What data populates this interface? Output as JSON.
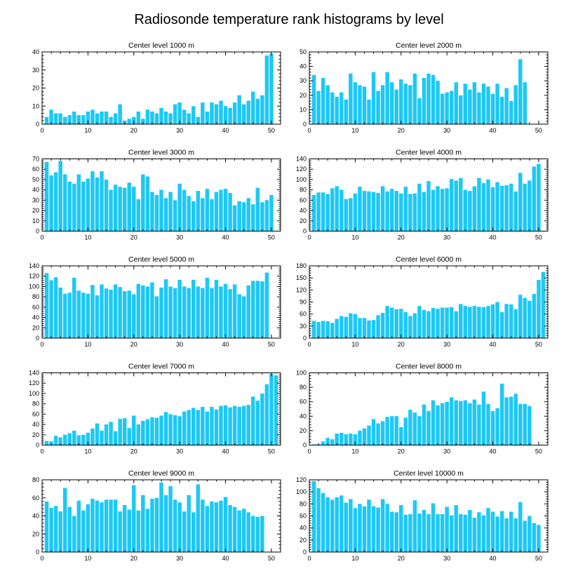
{
  "figure": {
    "title": "Radiosonde temperature rank histograms by level",
    "bar_color": "#1ec8f5"
  },
  "chart_data": [
    {
      "type": "bar",
      "title": "Center level 1000 m",
      "xlim": [
        0,
        52
      ],
      "xticks": [
        0,
        10,
        20,
        30,
        40,
        50
      ],
      "ylim": [
        0,
        40
      ],
      "yticks": [
        0,
        10,
        20,
        30,
        40
      ],
      "values": [
        4,
        8,
        6,
        6,
        4,
        5,
        7,
        5,
        5,
        7,
        8,
        6,
        7,
        7,
        4,
        6,
        11,
        2,
        3,
        4,
        7,
        3,
        8,
        7,
        6,
        9,
        7,
        6,
        11,
        12,
        8,
        6,
        10,
        4,
        12,
        7,
        12,
        11,
        13,
        10,
        9,
        12,
        16,
        11,
        13,
        18,
        14,
        16,
        38,
        39
      ]
    },
    {
      "type": "bar",
      "title": "Center level 2000 m",
      "xlim": [
        0,
        52
      ],
      "xticks": [
        0,
        10,
        20,
        30,
        40,
        50
      ],
      "ylim": [
        0,
        50
      ],
      "yticks": [
        0,
        10,
        20,
        30,
        40,
        50
      ],
      "values": [
        34,
        23,
        32,
        27,
        22,
        19,
        22,
        17,
        35,
        29,
        27,
        26,
        17,
        36,
        23,
        27,
        36,
        29,
        24,
        31,
        28,
        27,
        35,
        18,
        32,
        35,
        34,
        30,
        21,
        22,
        23,
        29,
        20,
        28,
        24,
        29,
        22,
        28,
        26,
        21,
        28,
        19,
        25,
        16,
        27,
        45,
        29
      ]
    },
    {
      "type": "bar",
      "title": "Center level 3000 m",
      "xlim": [
        0,
        52
      ],
      "xticks": [
        0,
        10,
        20,
        30,
        40,
        50
      ],
      "ylim": [
        0,
        70
      ],
      "yticks": [
        0,
        10,
        20,
        30,
        40,
        50,
        60,
        70
      ],
      "values": [
        67,
        54,
        57,
        68,
        55,
        48,
        46,
        55,
        48,
        51,
        58,
        52,
        58,
        50,
        40,
        45,
        43,
        42,
        47,
        43,
        31,
        55,
        53,
        38,
        35,
        40,
        32,
        38,
        30,
        46,
        40,
        34,
        29,
        39,
        32,
        41,
        31,
        38,
        40,
        41,
        37,
        25,
        29,
        28,
        32,
        26,
        42,
        28,
        30,
        35
      ]
    },
    {
      "type": "bar",
      "title": "Center level 4000 m",
      "xlim": [
        0,
        52
      ],
      "xticks": [
        0,
        10,
        20,
        30,
        40,
        50
      ],
      "ylim": [
        0,
        140
      ],
      "yticks": [
        0,
        20,
        40,
        60,
        80,
        100,
        120,
        140
      ],
      "values": [
        70,
        75,
        75,
        72,
        83,
        87,
        80,
        62,
        64,
        73,
        86,
        78,
        77,
        76,
        74,
        87,
        77,
        82,
        78,
        73,
        86,
        72,
        73,
        92,
        76,
        97,
        80,
        87,
        82,
        83,
        101,
        98,
        103,
        80,
        78,
        87,
        103,
        93,
        100,
        85,
        95,
        88,
        89,
        92,
        77,
        113,
        92,
        98,
        125,
        130
      ]
    },
    {
      "type": "bar",
      "title": "Center level 5000 m",
      "xlim": [
        0,
        52
      ],
      "xticks": [
        0,
        10,
        20,
        30,
        40,
        50
      ],
      "ylim": [
        0,
        140
      ],
      "yticks": [
        0,
        20,
        40,
        60,
        80,
        100,
        120,
        140
      ],
      "values": [
        126,
        112,
        118,
        98,
        86,
        88,
        117,
        92,
        88,
        86,
        103,
        83,
        104,
        96,
        94,
        104,
        99,
        91,
        92,
        85,
        105,
        102,
        100,
        108,
        81,
        98,
        114,
        100,
        97,
        113,
        100,
        97,
        113,
        100,
        97,
        117,
        97,
        113,
        100,
        105,
        95,
        104,
        85,
        81,
        102,
        111,
        111,
        110,
        127
      ]
    },
    {
      "type": "bar",
      "title": "Center level 6000 m",
      "xlim": [
        0,
        52
      ],
      "xticks": [
        0,
        10,
        20,
        30,
        40,
        50
      ],
      "ylim": [
        0,
        180
      ],
      "yticks": [
        0,
        30,
        60,
        90,
        120,
        150,
        180
      ],
      "values": [
        43,
        40,
        43,
        42,
        38,
        48,
        55,
        53,
        62,
        60,
        50,
        50,
        44,
        45,
        57,
        63,
        80,
        76,
        72,
        73,
        65,
        55,
        62,
        80,
        70,
        67,
        75,
        73,
        76,
        76,
        77,
        67,
        85,
        80,
        78,
        80,
        78,
        77,
        80,
        84,
        90,
        65,
        85,
        84,
        72,
        108,
        100,
        93,
        110,
        145,
        165
      ]
    },
    {
      "type": "bar",
      "title": "Center level 7000 m",
      "xlim": [
        0,
        52
      ],
      "xticks": [
        0,
        10,
        20,
        30,
        40,
        50
      ],
      "ylim": [
        0,
        140
      ],
      "yticks": [
        0,
        20,
        40,
        60,
        80,
        100,
        120,
        140
      ],
      "values": [
        8,
        7,
        18,
        15,
        20,
        23,
        28,
        19,
        20,
        24,
        32,
        42,
        28,
        40,
        45,
        27,
        51,
        52,
        33,
        57,
        40,
        47,
        50,
        54,
        53,
        57,
        64,
        60,
        58,
        56,
        65,
        68,
        72,
        68,
        74,
        65,
        74,
        69,
        76,
        77,
        73,
        76,
        74,
        76,
        78,
        94,
        86,
        100,
        118,
        138,
        135
      ]
    },
    {
      "type": "bar",
      "title": "Center level 8000 m",
      "xlim": [
        0,
        52
      ],
      "xticks": [
        0,
        10,
        20,
        30,
        40,
        50
      ],
      "ylim": [
        0,
        100
      ],
      "yticks": [
        0,
        20,
        40,
        60,
        80,
        100
      ],
      "values": [
        1,
        1,
        5,
        10,
        8,
        16,
        17,
        15,
        16,
        15,
        20,
        23,
        27,
        36,
        30,
        33,
        39,
        40,
        40,
        25,
        38,
        49,
        45,
        40,
        56,
        47,
        62,
        55,
        58,
        60,
        66,
        62,
        61,
        62,
        58,
        63,
        56,
        74,
        57,
        47,
        51,
        85,
        66,
        67,
        71,
        57,
        57,
        54
      ]
    },
    {
      "type": "bar",
      "title": "Center level 9000 m",
      "xlim": [
        0,
        52
      ],
      "xticks": [
        0,
        10,
        20,
        30,
        40,
        50
      ],
      "ylim": [
        0,
        80
      ],
      "yticks": [
        0,
        20,
        40,
        60,
        80
      ],
      "values": [
        56,
        49,
        51,
        45,
        71,
        50,
        40,
        57,
        46,
        53,
        59,
        57,
        55,
        58,
        58,
        58,
        45,
        52,
        47,
        74,
        46,
        63,
        48,
        59,
        60,
        77,
        63,
        73,
        58,
        55,
        45,
        63,
        44,
        75,
        58,
        51,
        56,
        55,
        57,
        61,
        52,
        50,
        46,
        48,
        44,
        40,
        39,
        40
      ]
    },
    {
      "type": "bar",
      "title": "Center level 10000 m",
      "xlim": [
        0,
        52
      ],
      "xticks": [
        0,
        10,
        20,
        30,
        40,
        50
      ],
      "ylim": [
        0,
        120
      ],
      "yticks": [
        0,
        20,
        40,
        60,
        80,
        100,
        120
      ],
      "values": [
        118,
        106,
        98,
        91,
        87,
        91,
        94,
        82,
        88,
        73,
        80,
        76,
        87,
        76,
        74,
        88,
        80,
        67,
        66,
        78,
        62,
        63,
        86,
        64,
        70,
        63,
        81,
        63,
        63,
        75,
        61,
        78,
        63,
        62,
        70,
        57,
        66,
        61,
        73,
        67,
        59,
        68,
        56,
        67,
        56,
        83,
        52,
        60,
        48,
        45
      ]
    }
  ]
}
